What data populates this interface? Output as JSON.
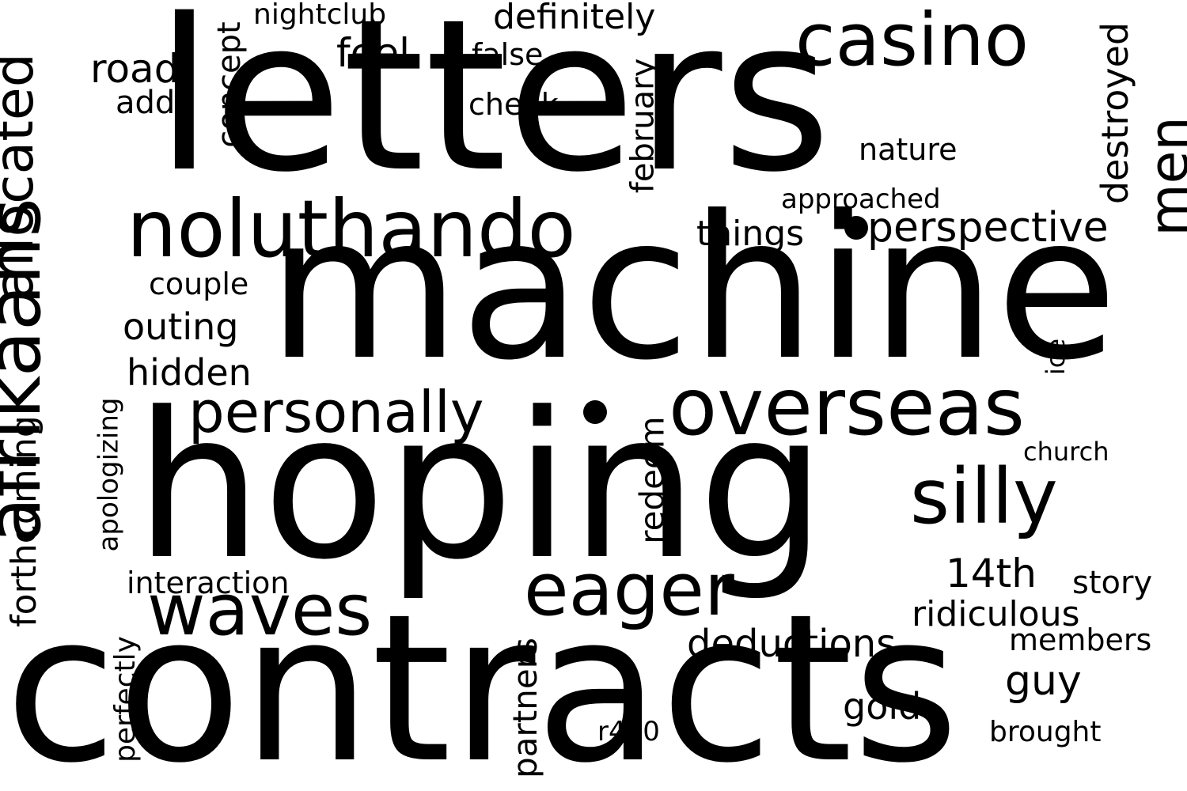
{
  "colors": {
    "background": "#ffffff",
    "text": "#000000"
  },
  "words": {
    "letters": "letters",
    "machine": "machine",
    "hoping": "hoping",
    "contracts": "contracts",
    "afrikaans": "afrikaans",
    "noluthando": "noluthando",
    "casino": "casino",
    "overseas": "overseas",
    "silly": "silly",
    "personally": "personally",
    "eager": "eager",
    "waves": "waves",
    "allocated": "allocated",
    "men": "men",
    "perspective": "perspective",
    "destroyed": "destroyed",
    "definitely": "definitely",
    "nightclub": "nightclub",
    "feel": "feel",
    "false": "false",
    "road": "road",
    "add": "add",
    "cheek": "cheek",
    "concept": "concept",
    "february": "february",
    "nature": "nature",
    "approached": "approached",
    "things": "things",
    "couple": "couple",
    "outing": "outing",
    "hidden": "hidden",
    "forthcoming": "forthcoming",
    "apologizing": "apologizing",
    "interaction": "interaction",
    "redeem": "redeem",
    "ice": "ice",
    "church": "church",
    "14th": "14th",
    "story": "story",
    "ridiculous": "ridiculous",
    "deductions": "deductions",
    "members": "members",
    "guy": "guy",
    "gold": "gold",
    "partners": "partners",
    "perfectly": "perfectly",
    "r450": "r450",
    "brought": "brought"
  }
}
